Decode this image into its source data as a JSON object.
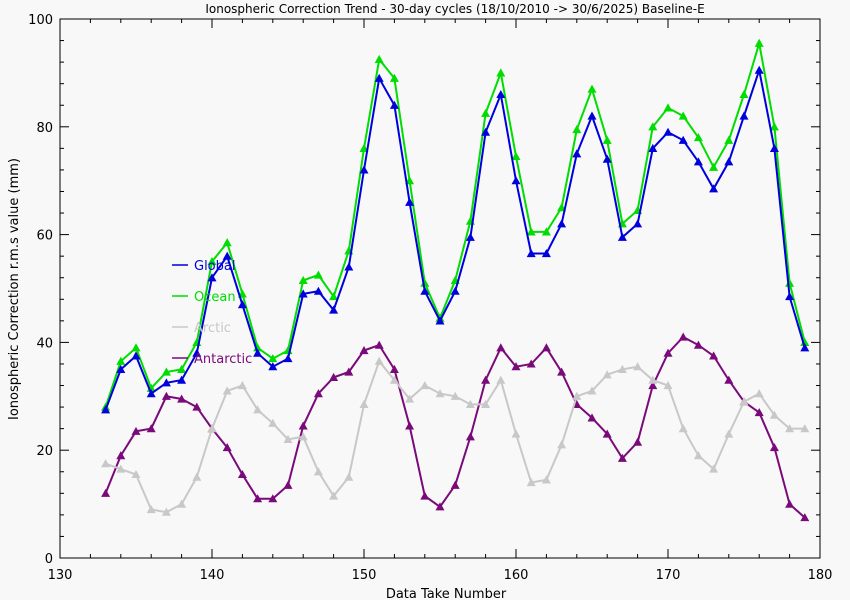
{
  "chart_data": {
    "type": "line",
    "title": "Ionospheric Correction Trend - 30-day cycles (18/10/2010 -> 30/6/2025) Baseline-E",
    "xlabel": "Data Take Number",
    "ylabel": "Ionospheric Correction r.m.s value (mm)",
    "xlim": [
      130,
      180
    ],
    "ylim": [
      0,
      100
    ],
    "xticks": [
      130,
      140,
      150,
      160,
      170,
      180
    ],
    "yticks": [
      0,
      20,
      40,
      60,
      80,
      100
    ],
    "grid": false,
    "legend_position": "left-middle",
    "marker": "triangle",
    "x": [
      133,
      134,
      135,
      136,
      137,
      138,
      139,
      140,
      141,
      142,
      143,
      144,
      145,
      146,
      147,
      148,
      149,
      150,
      151,
      152,
      153,
      154,
      155,
      156,
      157,
      158,
      159,
      160,
      161,
      162,
      163,
      164,
      165,
      166,
      167,
      168,
      169,
      170,
      171,
      172,
      173,
      174,
      175,
      176,
      177,
      178,
      179
    ],
    "series": [
      {
        "name": "Global",
        "color": "#0000dd",
        "values": [
          27.5,
          35,
          37.5,
          30.5,
          32.5,
          33,
          38,
          52,
          56,
          47,
          38,
          35.5,
          37,
          49,
          49.5,
          46,
          54,
          72,
          89,
          84,
          66,
          49.5,
          44,
          49.5,
          59.5,
          79,
          86,
          70,
          56.5,
          56.5,
          62,
          75,
          82,
          74,
          59.5,
          62,
          76,
          79,
          77.5,
          73.5,
          68.5,
          73.5,
          82,
          90.5,
          76,
          48.5,
          39
        ]
      },
      {
        "name": "Ocean",
        "color": "#00dd00",
        "values": [
          28,
          36.5,
          39,
          31.5,
          34.5,
          35,
          40,
          55,
          58.5,
          49,
          39,
          37,
          38.5,
          51.5,
          52.5,
          48.5,
          57,
          76,
          92.5,
          89,
          70,
          51,
          44.5,
          51.5,
          62.5,
          82.5,
          90,
          74.5,
          60.5,
          60.5,
          65,
          79.5,
          87,
          77.5,
          62,
          64.5,
          80,
          83.5,
          82,
          78,
          72.5,
          77.5,
          86,
          95.5,
          80,
          51,
          40
        ]
      },
      {
        "name": "Arctic",
        "color": "#c8c8c8",
        "values": [
          17.5,
          16.5,
          15.5,
          9,
          8.5,
          10,
          15,
          24,
          31,
          32,
          27.5,
          25,
          22,
          22.5,
          16,
          11.5,
          15,
          28.5,
          36.5,
          33,
          29.5,
          32,
          30.5,
          30,
          28.5,
          28.5,
          33,
          23,
          14,
          14.5,
          21,
          30,
          31,
          34,
          35,
          35.5,
          33,
          32,
          24,
          19,
          16.5,
          23,
          29,
          30.5,
          26.5,
          24,
          24
        ]
      },
      {
        "name": "Antarctic",
        "color": "#7a0a7a",
        "values": [
          12,
          19,
          23.5,
          24,
          30,
          29.5,
          28,
          24,
          20.5,
          15.5,
          11,
          11,
          13.5,
          24.5,
          30.5,
          33.5,
          34.5,
          38.5,
          39.5,
          35,
          24.5,
          11.5,
          9.5,
          13.5,
          22.5,
          33,
          39,
          35.5,
          36,
          39,
          34.5,
          28.5,
          26,
          23,
          18.5,
          21.5,
          32,
          38,
          41,
          39.5,
          37.5,
          33,
          29,
          27,
          20.5,
          10,
          7.5
        ]
      }
    ]
  }
}
